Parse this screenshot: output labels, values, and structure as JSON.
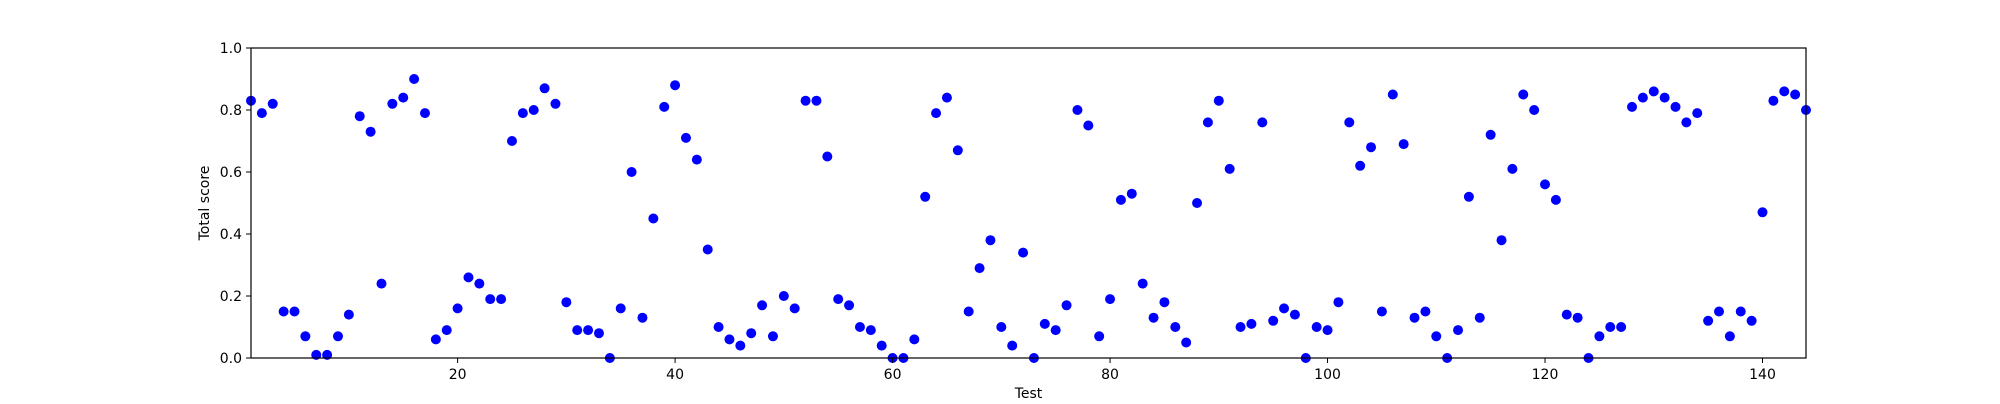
{
  "chart_data": {
    "type": "scatter",
    "title": "",
    "xlabel": "Test",
    "ylabel": "Total score",
    "xlim": [
      1,
      144
    ],
    "ylim": [
      0.0,
      1.0
    ],
    "xticks": [
      20,
      40,
      60,
      80,
      100,
      120,
      140
    ],
    "yticks": [
      0.0,
      0.2,
      0.4,
      0.6,
      0.8,
      1.0
    ],
    "grid": false,
    "marker_color": "#0000ff",
    "series": [
      {
        "x": [
          1,
          2,
          3,
          4,
          5,
          6,
          7,
          8,
          9,
          10,
          11,
          12,
          13,
          14,
          15,
          16,
          17,
          18,
          19,
          20,
          21,
          22,
          23,
          24,
          25,
          26,
          27,
          28,
          29,
          30,
          31,
          32,
          33,
          34,
          35,
          36,
          37,
          38,
          39,
          40,
          41,
          42,
          43,
          44,
          45,
          46,
          47,
          48,
          49,
          50,
          51,
          52,
          53,
          54,
          55,
          56,
          57,
          58,
          59,
          60,
          61,
          62,
          63,
          64,
          65,
          66,
          67,
          68,
          69,
          70,
          71,
          72,
          73,
          74,
          75,
          76,
          77,
          78,
          79,
          80,
          81,
          82,
          83,
          84,
          85,
          86,
          87,
          88,
          89,
          90,
          91,
          92,
          93,
          94,
          95,
          96,
          97,
          98,
          99,
          100,
          101,
          102,
          103,
          104,
          105,
          106,
          107,
          108,
          109,
          110,
          111,
          112,
          113,
          114,
          115,
          116,
          117,
          118,
          119,
          120,
          121,
          122,
          123,
          124,
          125,
          126,
          127,
          128,
          129,
          130,
          131,
          132,
          133,
          134,
          135,
          136,
          137,
          138,
          139,
          140,
          141,
          142,
          143,
          144
        ],
        "y": [
          0.83,
          0.79,
          0.82,
          0.15,
          0.15,
          0.07,
          0.01,
          0.01,
          0.07,
          0.14,
          0.78,
          0.73,
          0.24,
          0.82,
          0.84,
          0.9,
          0.79,
          0.06,
          0.09,
          0.16,
          0.26,
          0.24,
          0.19,
          0.19,
          0.7,
          0.79,
          0.8,
          0.87,
          0.82,
          0.18,
          0.09,
          0.09,
          0.08,
          0.0,
          0.16,
          0.6,
          0.13,
          0.45,
          0.81,
          0.88,
          0.71,
          0.64,
          0.35,
          0.1,
          0.06,
          0.04,
          0.08,
          0.17,
          0.07,
          0.2,
          0.16,
          0.83,
          0.83,
          0.65,
          0.19,
          0.17,
          0.1,
          0.09,
          0.04,
          0.0,
          0.0,
          0.06,
          0.52,
          0.79,
          0.84,
          0.67,
          0.15,
          0.29,
          0.38,
          0.1,
          0.04,
          0.34,
          0.0,
          0.11,
          0.09,
          0.17,
          0.8,
          0.75,
          0.07,
          0.19,
          0.51,
          0.53,
          0.24,
          0.13,
          0.18,
          0.1,
          0.05,
          0.5,
          0.76,
          0.83,
          0.61,
          0.1,
          0.11,
          0.76,
          0.12,
          0.16,
          0.14,
          0.0,
          0.1,
          0.09,
          0.18,
          0.76,
          0.62,
          0.68,
          0.15,
          0.85,
          0.69,
          0.13,
          0.15,
          0.07,
          0.0,
          0.09,
          0.52,
          0.13,
          0.72,
          0.38,
          0.61,
          0.85,
          0.8,
          0.56,
          0.51,
          0.14,
          0.13,
          0.0,
          0.07,
          0.1,
          0.1,
          0.81,
          0.84,
          0.86,
          0.84,
          0.81,
          0.76,
          0.79,
          0.12,
          0.15,
          0.07,
          0.15,
          0.12,
          0.47,
          0.83,
          0.86,
          0.85,
          0.8
        ]
      }
    ]
  }
}
